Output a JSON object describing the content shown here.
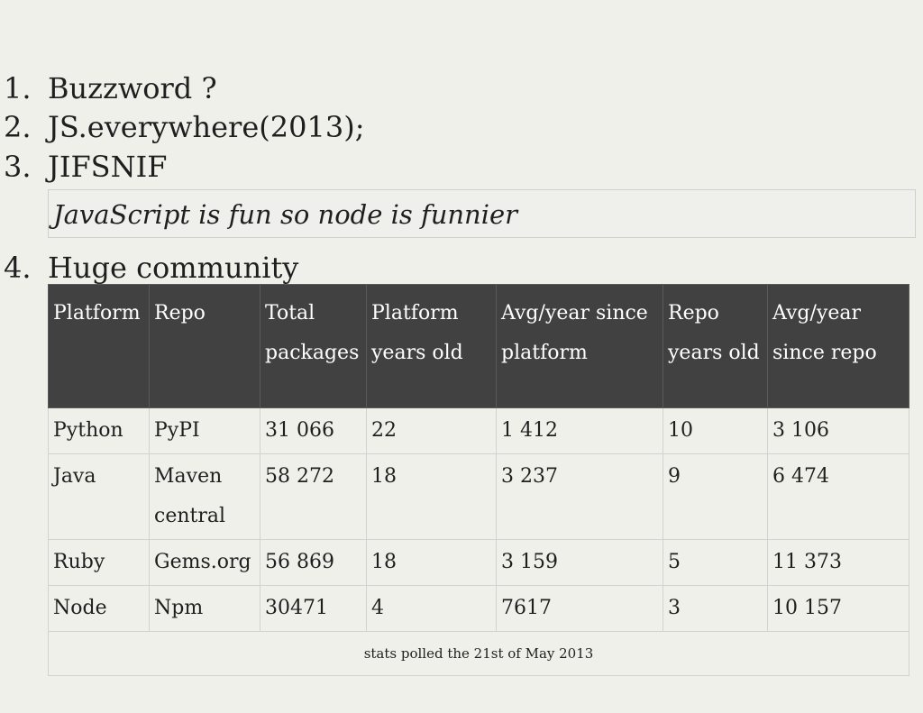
{
  "list": {
    "items": [
      {
        "num": "1.",
        "text": "Buzzword ?"
      },
      {
        "num": "2.",
        "text": "JS.everywhere(2013);"
      },
      {
        "num": "3.",
        "text": "JIFSNIF"
      },
      {
        "num": "4.",
        "text": "Huge community"
      }
    ],
    "quote": "JavaScript is fun so node is funnier"
  },
  "table": {
    "headers": [
      "Platform",
      "Repo",
      "Total packages",
      "Platform years old",
      "Avg/year since platform",
      "Repo years old",
      "Avg/year since repo"
    ],
    "rows": [
      [
        "Python",
        "PyPI",
        "31 066",
        "22",
        "1 412",
        "10",
        "3 106"
      ],
      [
        "Java",
        "Maven central",
        "58 272",
        "18",
        "3 237",
        "9",
        "6 474"
      ],
      [
        "Ruby",
        "Gems.org",
        "56 869",
        "18",
        "3 159",
        "5",
        "11 373"
      ],
      [
        "Node",
        "Npm",
        "30471",
        "4",
        "7617",
        "3",
        "10 157"
      ]
    ],
    "footer": "stats polled the 21st of May 2013"
  }
}
